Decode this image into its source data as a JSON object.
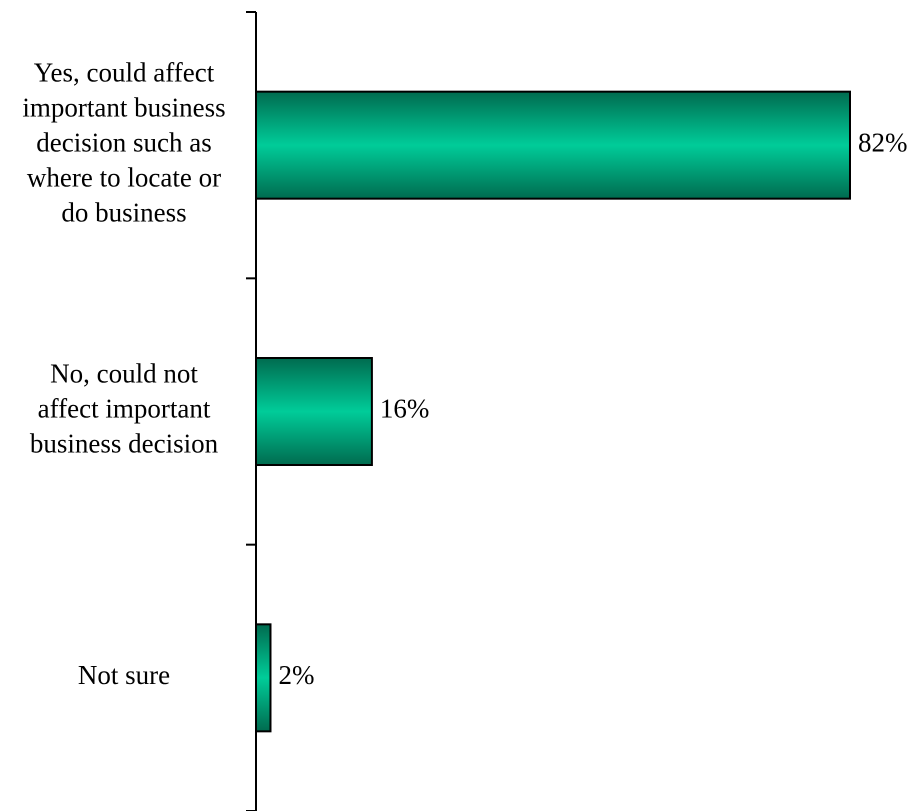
{
  "chart_data": {
    "type": "bar",
    "orientation": "horizontal",
    "categories": [
      [
        "Yes, could affect",
        "important business",
        "decision such as",
        "where to locate or",
        "do business"
      ],
      [
        "No, could not",
        "affect important",
        "business decision"
      ],
      [
        "Not sure"
      ]
    ],
    "values": [
      82,
      16,
      2
    ],
    "data_labels": [
      "82%",
      "16%",
      "2%"
    ],
    "value_unit": "%",
    "xlim": [
      0,
      100
    ],
    "grid": false,
    "legend": "none",
    "colors": {
      "bar_center": "#00CC99",
      "bar_edge": "#006B4F",
      "outline": "#000000"
    }
  }
}
